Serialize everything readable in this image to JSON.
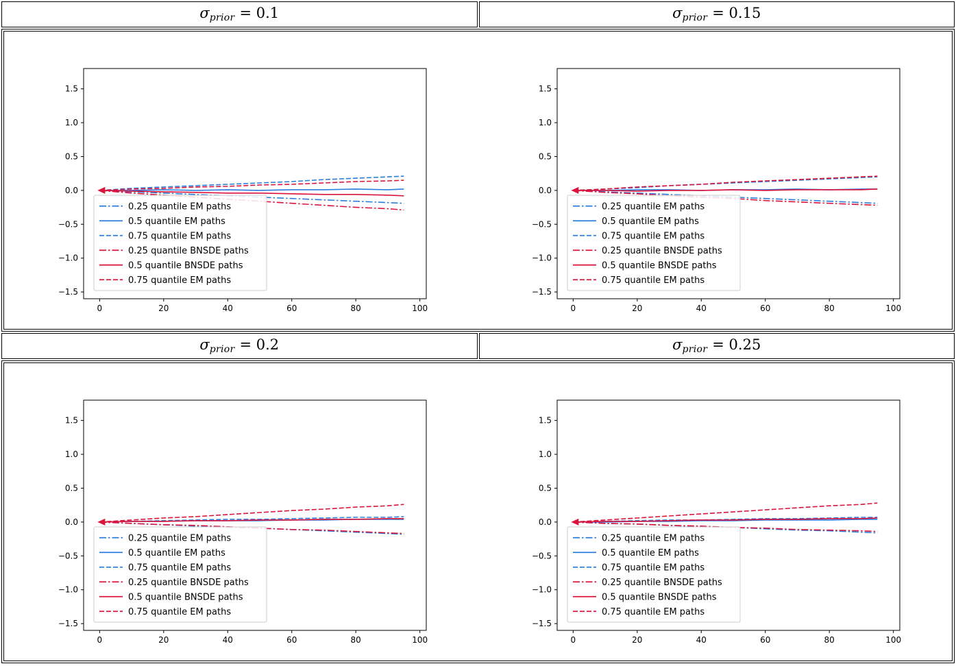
{
  "colors": {
    "blue": "#2b7de0",
    "crimson": "#dc143c"
  },
  "axis": {
    "x": [
      0,
      10,
      20,
      30,
      40,
      50,
      60,
      70,
      80,
      90,
      95
    ],
    "xlim": [
      -5,
      102
    ],
    "ylim": [
      -1.6,
      1.8
    ],
    "xticks": [
      0,
      20,
      40,
      60,
      80,
      100
    ],
    "xtick_labels": [
      "0",
      "20",
      "40",
      "60",
      "80",
      "100"
    ],
    "yticks": [
      -1.5,
      -1.0,
      -0.5,
      0.0,
      0.5,
      1.0,
      1.5
    ],
    "ytick_labels": [
      "−1.5",
      "−1.0",
      "−0.5",
      "0.0",
      "0.5",
      "1.0",
      "1.5"
    ],
    "grid": false,
    "legend_position": "lower-left"
  },
  "chart_data": [
    {
      "type": "line",
      "title": {
        "sigma": "σ",
        "sub": "prior",
        "rest": "= 0.1"
      },
      "series": [
        {
          "name": "0.25 quantile EM paths",
          "color": "blue",
          "style": "dashdot",
          "values": [
            0.0,
            -0.02,
            -0.04,
            -0.06,
            -0.08,
            -0.1,
            -0.12,
            -0.14,
            -0.16,
            -0.18,
            -0.19
          ]
        },
        {
          "name": "0.5 quantile EM paths",
          "color": "blue",
          "style": "solid",
          "values": [
            0.0,
            0.0,
            0.01,
            0.0,
            0.01,
            0.0,
            0.01,
            0.01,
            0.02,
            0.01,
            0.02
          ]
        },
        {
          "name": "0.75 quantile EM paths",
          "color": "blue",
          "style": "dashed",
          "values": [
            0.0,
            0.03,
            0.05,
            0.07,
            0.09,
            0.11,
            0.13,
            0.16,
            0.18,
            0.2,
            0.21
          ]
        },
        {
          "name": "0.25 quantile BNSDE paths",
          "color": "crimson",
          "style": "dashdot",
          "values": [
            0.0,
            -0.04,
            -0.07,
            -0.1,
            -0.13,
            -0.16,
            -0.19,
            -0.22,
            -0.25,
            -0.27,
            -0.29
          ]
        },
        {
          "name": "0.5 quantile BNSDE paths",
          "color": "crimson",
          "style": "solid",
          "values": [
            0.0,
            -0.01,
            -0.02,
            -0.03,
            -0.04,
            -0.04,
            -0.05,
            -0.06,
            -0.06,
            -0.07,
            -0.08
          ]
        },
        {
          "name": "0.75 quantile EM paths",
          "color": "crimson",
          "style": "dashed",
          "values": [
            0.0,
            0.02,
            0.03,
            0.05,
            0.06,
            0.08,
            0.09,
            0.11,
            0.13,
            0.14,
            0.15
          ]
        }
      ]
    },
    {
      "type": "line",
      "title": {
        "sigma": "σ",
        "sub": "prior",
        "rest": "= 0.15"
      },
      "series": [
        {
          "name": "0.25 quantile EM paths",
          "color": "blue",
          "style": "dashdot",
          "values": [
            0.0,
            -0.02,
            -0.04,
            -0.06,
            -0.08,
            -0.1,
            -0.12,
            -0.14,
            -0.16,
            -0.18,
            -0.19
          ]
        },
        {
          "name": "0.5 quantile EM paths",
          "color": "blue",
          "style": "solid",
          "values": [
            0.0,
            0.0,
            0.01,
            0.01,
            0.0,
            0.01,
            0.01,
            0.02,
            0.01,
            0.02,
            0.02
          ]
        },
        {
          "name": "0.75 quantile EM paths",
          "color": "blue",
          "style": "dashed",
          "values": [
            0.0,
            0.02,
            0.04,
            0.07,
            0.09,
            0.11,
            0.13,
            0.15,
            0.17,
            0.19,
            0.2
          ]
        },
        {
          "name": "0.25 quantile BNSDE paths",
          "color": "crimson",
          "style": "dashdot",
          "values": [
            0.0,
            -0.03,
            -0.05,
            -0.08,
            -0.1,
            -0.12,
            -0.15,
            -0.17,
            -0.19,
            -0.21,
            -0.22
          ]
        },
        {
          "name": "0.5 quantile BNSDE paths",
          "color": "crimson",
          "style": "solid",
          "values": [
            0.0,
            0.0,
            -0.01,
            0.0,
            0.0,
            0.01,
            0.0,
            0.01,
            0.01,
            0.01,
            0.02
          ]
        },
        {
          "name": "0.75 quantile EM paths",
          "color": "crimson",
          "style": "dashed",
          "values": [
            0.0,
            0.02,
            0.05,
            0.07,
            0.09,
            0.12,
            0.14,
            0.16,
            0.18,
            0.2,
            0.21
          ]
        }
      ]
    },
    {
      "type": "line",
      "title": {
        "sigma": "σ",
        "sub": "prior",
        "rest": "= 0.2"
      },
      "series": [
        {
          "name": "0.25 quantile EM paths",
          "color": "blue",
          "style": "dashdot",
          "values": [
            0.0,
            -0.02,
            -0.04,
            -0.06,
            -0.08,
            -0.09,
            -0.11,
            -0.13,
            -0.15,
            -0.17,
            -0.18
          ]
        },
        {
          "name": "0.5 quantile EM paths",
          "color": "blue",
          "style": "solid",
          "values": [
            0.0,
            0.01,
            0.01,
            0.02,
            0.02,
            0.02,
            0.03,
            0.03,
            0.04,
            0.04,
            0.04
          ]
        },
        {
          "name": "0.75 quantile EM paths",
          "color": "blue",
          "style": "dashed",
          "values": [
            0.0,
            0.01,
            0.02,
            0.03,
            0.04,
            0.04,
            0.05,
            0.06,
            0.07,
            0.07,
            0.08
          ]
        },
        {
          "name": "0.25 quantile BNSDE paths",
          "color": "crimson",
          "style": "dashdot",
          "values": [
            0.0,
            -0.02,
            -0.04,
            -0.05,
            -0.07,
            -0.09,
            -0.11,
            -0.12,
            -0.14,
            -0.16,
            -0.17
          ]
        },
        {
          "name": "0.5 quantile BNSDE paths",
          "color": "crimson",
          "style": "solid",
          "values": [
            0.0,
            0.01,
            0.01,
            0.02,
            0.02,
            0.03,
            0.03,
            0.04,
            0.04,
            0.05,
            0.05
          ]
        },
        {
          "name": "0.75 quantile EM paths",
          "color": "crimson",
          "style": "dashed",
          "values": [
            0.0,
            0.03,
            0.06,
            0.08,
            0.11,
            0.14,
            0.17,
            0.19,
            0.22,
            0.24,
            0.26
          ]
        }
      ]
    },
    {
      "type": "line",
      "title": {
        "sigma": "σ",
        "sub": "prior",
        "rest": "= 0.25"
      },
      "series": [
        {
          "name": "0.25 quantile EM paths",
          "color": "blue",
          "style": "dashdot",
          "values": [
            0.0,
            -0.02,
            -0.03,
            -0.05,
            -0.07,
            -0.08,
            -0.1,
            -0.12,
            -0.13,
            -0.15,
            -0.16
          ]
        },
        {
          "name": "0.5 quantile EM paths",
          "color": "blue",
          "style": "solid",
          "values": [
            0.0,
            0.0,
            0.01,
            0.01,
            0.02,
            0.02,
            0.03,
            0.03,
            0.03,
            0.04,
            0.04
          ]
        },
        {
          "name": "0.75 quantile EM paths",
          "color": "blue",
          "style": "dashed",
          "values": [
            0.0,
            0.01,
            0.02,
            0.03,
            0.03,
            0.04,
            0.05,
            0.05,
            0.06,
            0.07,
            0.07
          ]
        },
        {
          "name": "0.25 quantile BNSDE paths",
          "color": "crimson",
          "style": "dashdot",
          "values": [
            0.0,
            -0.02,
            -0.03,
            -0.05,
            -0.06,
            -0.08,
            -0.09,
            -0.11,
            -0.12,
            -0.13,
            -0.14
          ]
        },
        {
          "name": "0.5 quantile BNSDE paths",
          "color": "crimson",
          "style": "solid",
          "values": [
            0.0,
            0.01,
            0.01,
            0.02,
            0.03,
            0.03,
            0.04,
            0.04,
            0.05,
            0.05,
            0.06
          ]
        },
        {
          "name": "0.75 quantile EM paths",
          "color": "crimson",
          "style": "dashed",
          "values": [
            0.0,
            0.03,
            0.06,
            0.09,
            0.12,
            0.15,
            0.18,
            0.21,
            0.24,
            0.26,
            0.28
          ]
        }
      ]
    }
  ]
}
